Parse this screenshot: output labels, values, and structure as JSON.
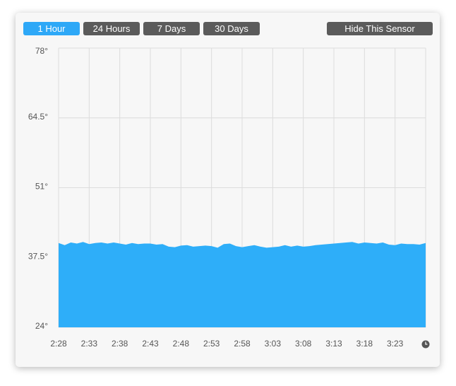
{
  "buttons": [
    "1 Hour",
    "24 Hours",
    "7 Days",
    "30 Days"
  ],
  "hide_button": "Hide This Sensor",
  "chart_data": {
    "type": "area",
    "color": "#2eaef9",
    "grid": true,
    "categories": [
      "2:28",
      null,
      null,
      null,
      null,
      "2:33",
      null,
      null,
      null,
      null,
      "2:38",
      null,
      null,
      null,
      null,
      "2:43",
      null,
      null,
      null,
      null,
      "2:48",
      null,
      null,
      null,
      null,
      "2:53",
      null,
      null,
      null,
      null,
      "2:58",
      null,
      null,
      null,
      null,
      "3:03",
      null,
      null,
      null,
      null,
      "3:08",
      null,
      null,
      null,
      null,
      "3:13",
      null,
      null,
      null,
      null,
      "3:18",
      null,
      null,
      null,
      null,
      "3:23",
      null,
      null,
      null,
      null,
      null
    ],
    "values": [
      40.3,
      39.9,
      40.4,
      40.2,
      40.5,
      40.1,
      40.3,
      40.4,
      40.2,
      40.4,
      40.2,
      40.0,
      40.3,
      40.1,
      40.2,
      40.2,
      40.0,
      40.1,
      39.6,
      39.5,
      39.8,
      39.9,
      39.6,
      39.7,
      39.8,
      39.7,
      39.4,
      40.1,
      40.2,
      39.7,
      39.5,
      39.7,
      39.9,
      39.6,
      39.4,
      39.5,
      39.6,
      39.9,
      39.6,
      39.8,
      39.6,
      39.7,
      39.9,
      40.0,
      40.1,
      40.2,
      40.3,
      40.4,
      40.5,
      40.2,
      40.4,
      40.3,
      40.2,
      40.4,
      40.0,
      39.9,
      40.2,
      40.1,
      40.1,
      40.0,
      40.3
    ],
    "ylim": [
      24,
      78
    ],
    "yticks": [
      {
        "value": 24,
        "label": "24°"
      },
      {
        "value": 37.5,
        "label": "37.5°"
      },
      {
        "value": 51,
        "label": "51°"
      },
      {
        "value": 64.5,
        "label": "64.5°"
      },
      {
        "value": 78,
        "label": "78°"
      }
    ]
  }
}
